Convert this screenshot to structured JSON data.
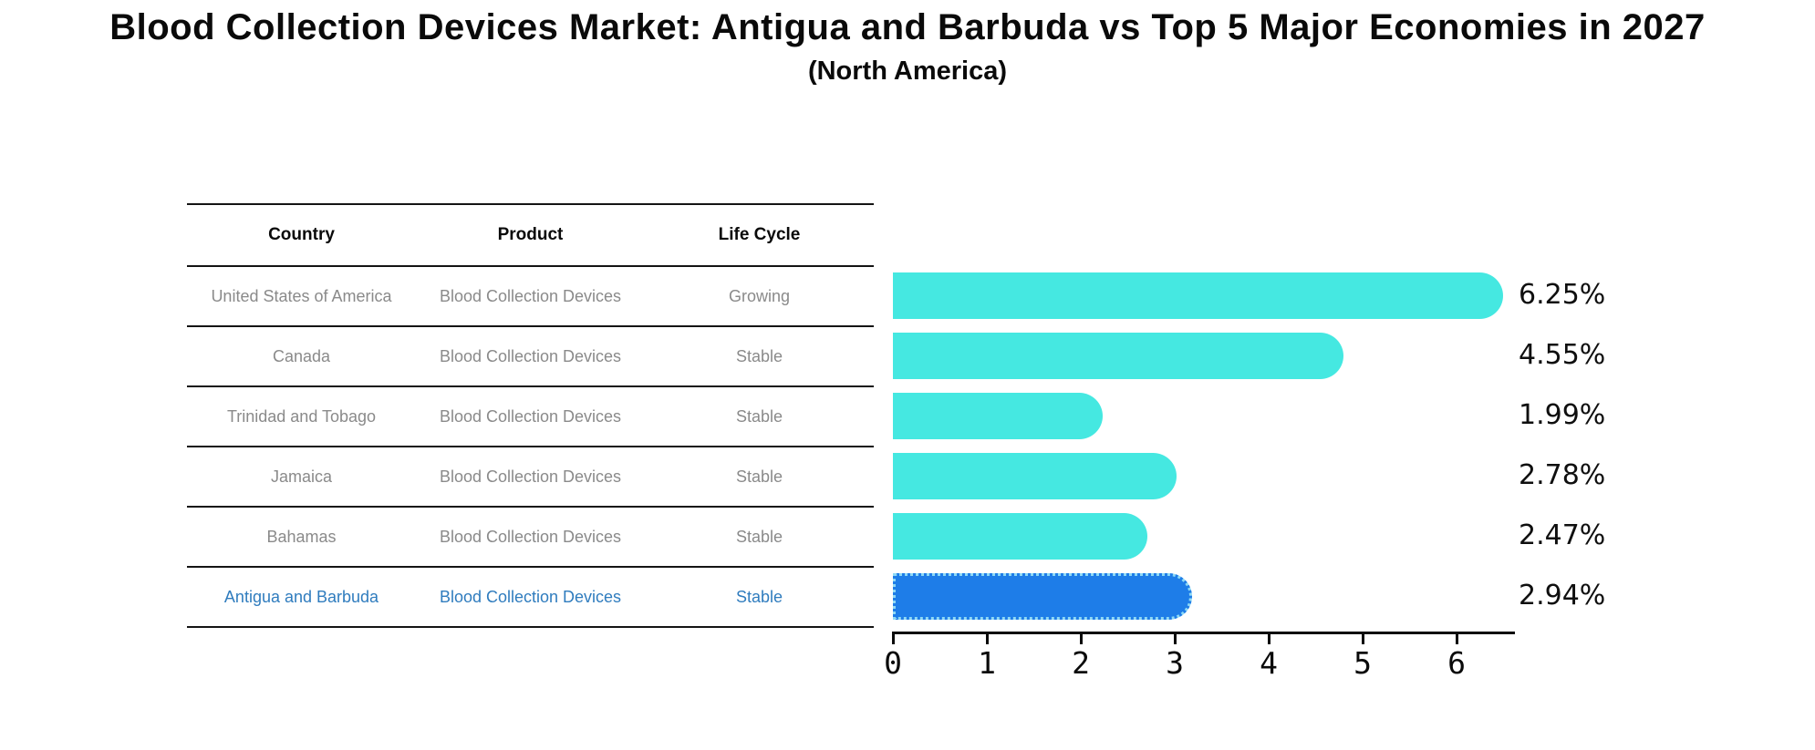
{
  "title": "Blood Collection Devices Market: Antigua and Barbuda vs Top 5 Major Economies in 2027",
  "subtitle": "(North America)",
  "table": {
    "headers": [
      "Country",
      "Product",
      "Life Cycle"
    ],
    "rows": [
      {
        "country": "United States of America",
        "product": "Blood Collection Devices",
        "life_cycle": "Growing",
        "value_label": "6.25%"
      },
      {
        "country": "Canada",
        "product": "Blood Collection Devices",
        "life_cycle": "Stable",
        "value_label": "4.55%"
      },
      {
        "country": "Trinidad and Tobago",
        "product": "Blood Collection Devices",
        "life_cycle": "Stable",
        "value_label": "1.99%"
      },
      {
        "country": "Jamaica",
        "product": "Blood Collection Devices",
        "life_cycle": "Stable",
        "value_label": "2.78%"
      },
      {
        "country": "Bahamas",
        "product": "Blood Collection Devices",
        "life_cycle": "Stable",
        "value_label": "2.47%"
      },
      {
        "country": "Antigua and Barbuda",
        "product": "Blood Collection Devices",
        "life_cycle": "Stable",
        "value_label": "2.94%"
      }
    ]
  },
  "chart_data": {
    "type": "bar",
    "orientation": "horizontal",
    "title": "Blood Collection Devices Market: Antigua and Barbuda vs Top 5 Major Economies in 2027",
    "subtitle": "(North America)",
    "categories": [
      "United States of America",
      "Canada",
      "Trinidad and Tobago",
      "Jamaica",
      "Bahamas",
      "Antigua and Barbuda"
    ],
    "values": [
      6.25,
      4.55,
      1.99,
      2.78,
      2.47,
      2.94
    ],
    "value_labels": [
      "6.25%",
      "4.55%",
      "1.99%",
      "2.78%",
      "2.47%",
      "2.94%"
    ],
    "xticks": [
      0,
      1,
      2,
      3,
      4,
      5,
      6
    ],
    "xlim": [
      0,
      6.6
    ],
    "grid": false,
    "legend": "none",
    "bar_color": "#45E8E1",
    "highlight_color": "#1E7DE8",
    "highlight_edge_color": "#8ED9F5",
    "highlight_index": 5,
    "highlight_text_color": "#2F7CBE"
  }
}
